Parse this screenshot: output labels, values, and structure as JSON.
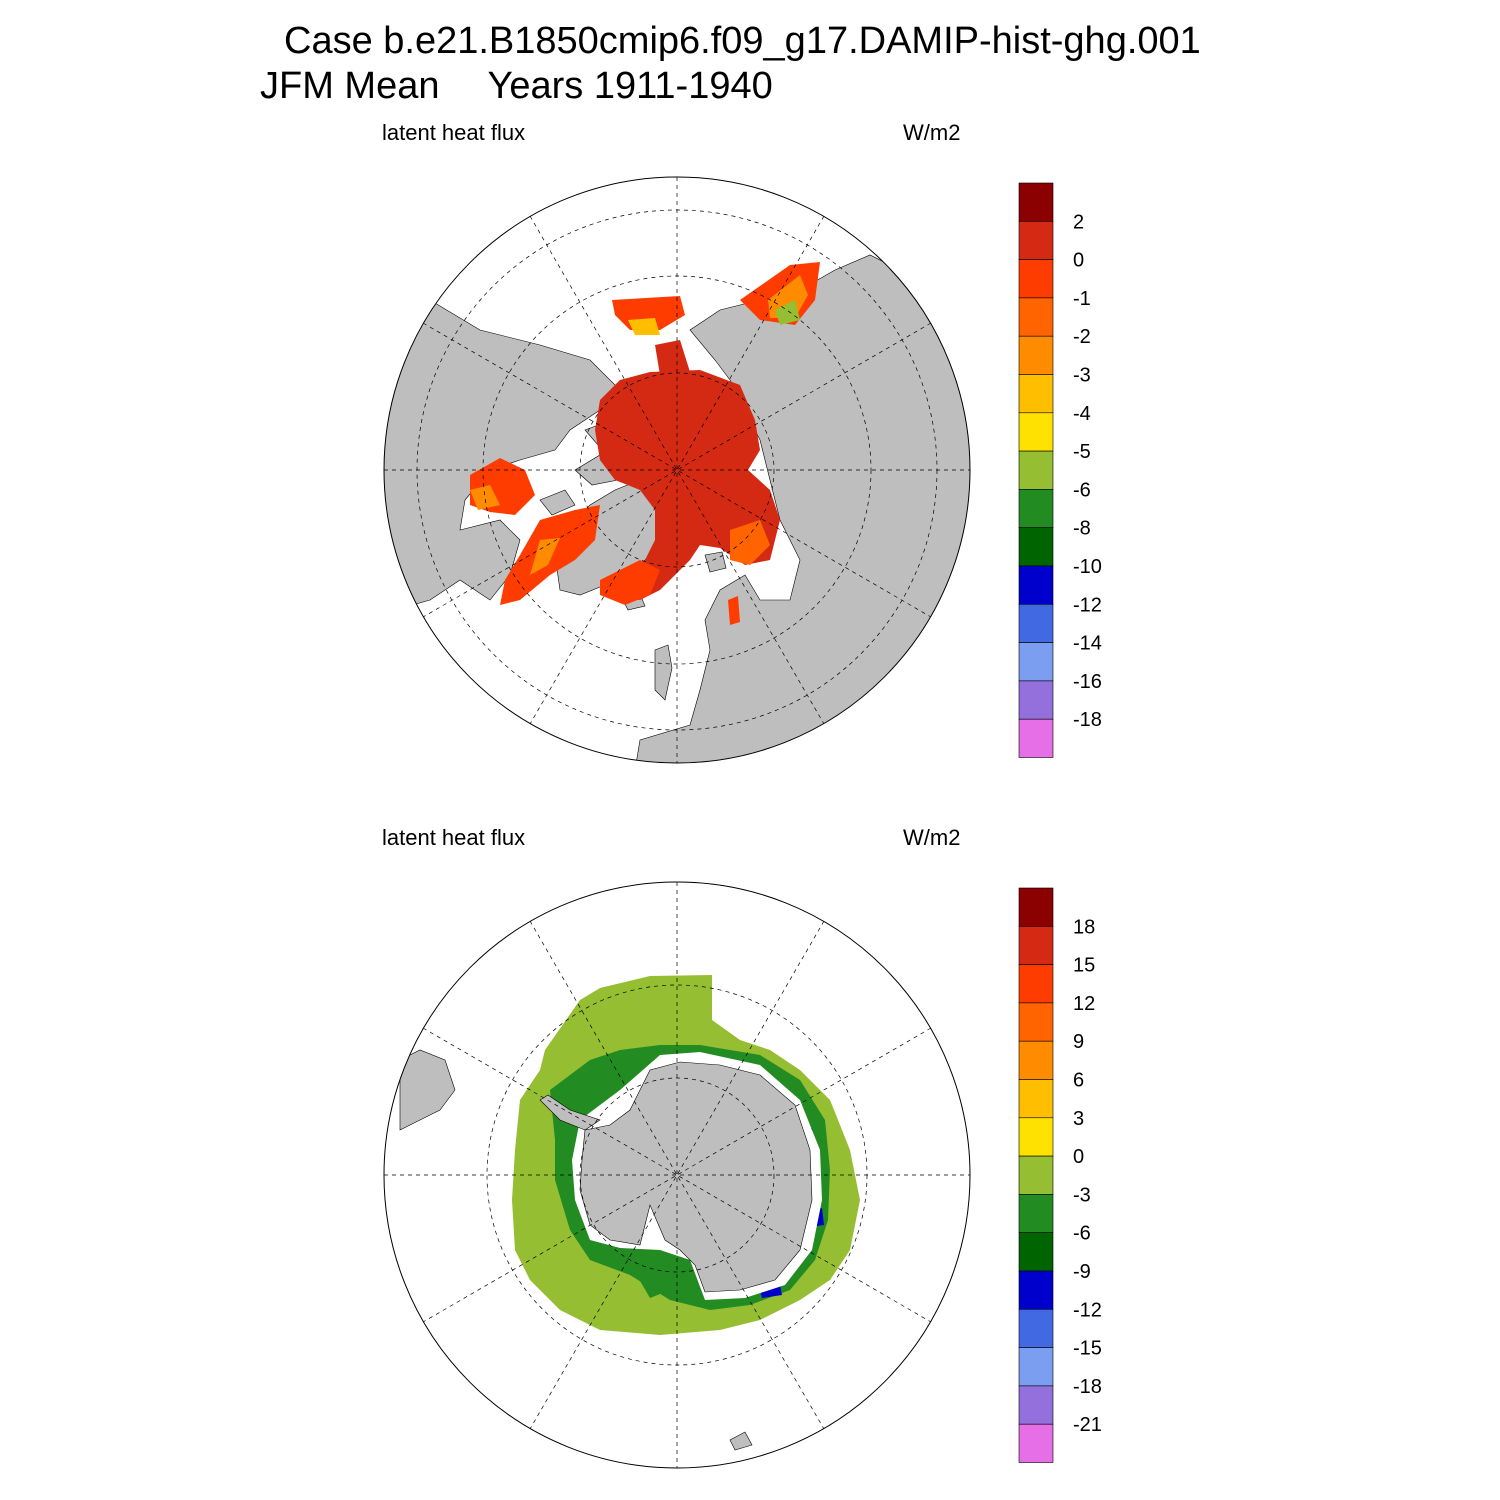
{
  "header": {
    "case_label": "Case b.e21.B1850cmip6.f09_g17.DAMIP-hist-ghg.001",
    "season": "JFM Mean",
    "years": "Years 1911-1940"
  },
  "panels": [
    {
      "hemisphere": "north",
      "variable_label": "latent heat flux",
      "units_label": "W/m2",
      "colorbar": {
        "tick_labels": [
          "2",
          "0",
          "-1",
          "-2",
          "-3",
          "-4",
          "-5",
          "-6",
          "-8",
          "-10",
          "-12",
          "-14",
          "-16",
          "-18"
        ],
        "colors": [
          "#8b0000",
          "#d42a14",
          "#ff3c00",
          "#ff6400",
          "#ff8c00",
          "#ffbe00",
          "#ffe100",
          "#96be32",
          "#228b22",
          "#006400",
          "#0000cd",
          "#4169e1",
          "#7b9ef0",
          "#9370db",
          "#e66ee6"
        ]
      }
    },
    {
      "hemisphere": "south",
      "variable_label": "latent heat flux",
      "units_label": "W/m2",
      "colorbar": {
        "tick_labels": [
          "18",
          "15",
          "12",
          "9",
          "6",
          "3",
          "0",
          "-3",
          "-6",
          "-9",
          "-12",
          "-15",
          "-18",
          "-21"
        ],
        "colors": [
          "#8b0000",
          "#d42a14",
          "#ff3c00",
          "#ff6400",
          "#ff8c00",
          "#ffbe00",
          "#ffe100",
          "#96be32",
          "#228b22",
          "#006400",
          "#0000cd",
          "#4169e1",
          "#7b9ef0",
          "#9370db",
          "#e66ee6"
        ]
      }
    }
  ],
  "colors": {
    "land": "#bebebe",
    "ocean_missing": "#ffffff"
  }
}
